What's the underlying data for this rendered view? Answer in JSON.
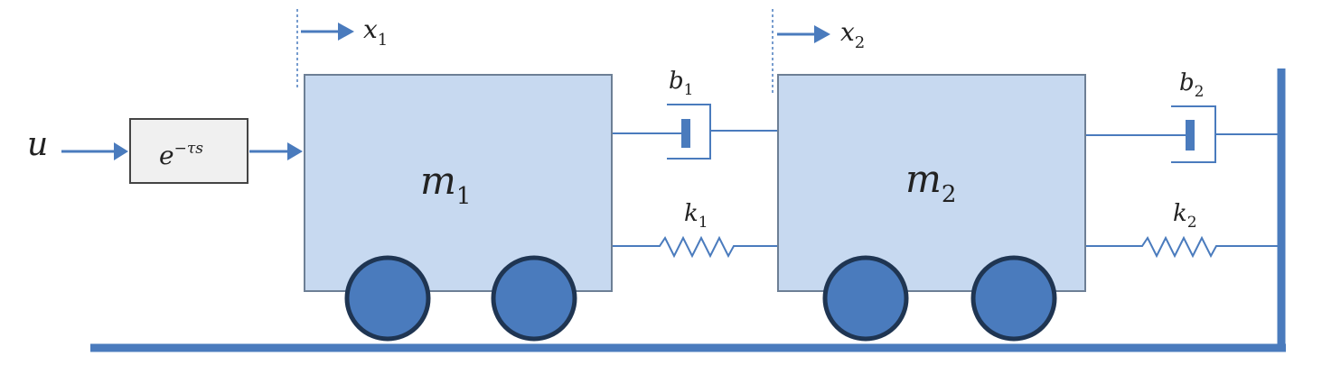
{
  "colors": {
    "line": "#4a7bbd",
    "mass_fill": "#c7d9f0",
    "mass_stroke": "#6d7f95",
    "wheel_fill": "#4a7bbd",
    "wheel_stroke": "#1f3552",
    "ground": "#4a7bbd",
    "delay_fill": "#f0f0f0",
    "delay_stroke": "#444444",
    "text": "#222222"
  },
  "input": {
    "symbol": "u"
  },
  "delay": {
    "base": "e",
    "exponent": "−τs"
  },
  "displacements": [
    {
      "symbol": "x",
      "subscript": "1"
    },
    {
      "symbol": "x",
      "subscript": "2"
    }
  ],
  "masses": [
    {
      "symbol": "m",
      "subscript": "1"
    },
    {
      "symbol": "m",
      "subscript": "2"
    }
  ],
  "dampers": [
    {
      "symbol": "b",
      "subscript": "1"
    },
    {
      "symbol": "b",
      "subscript": "2"
    }
  ],
  "springs": [
    {
      "symbol": "k",
      "subscript": "1"
    },
    {
      "symbol": "k",
      "subscript": "2"
    }
  ]
}
